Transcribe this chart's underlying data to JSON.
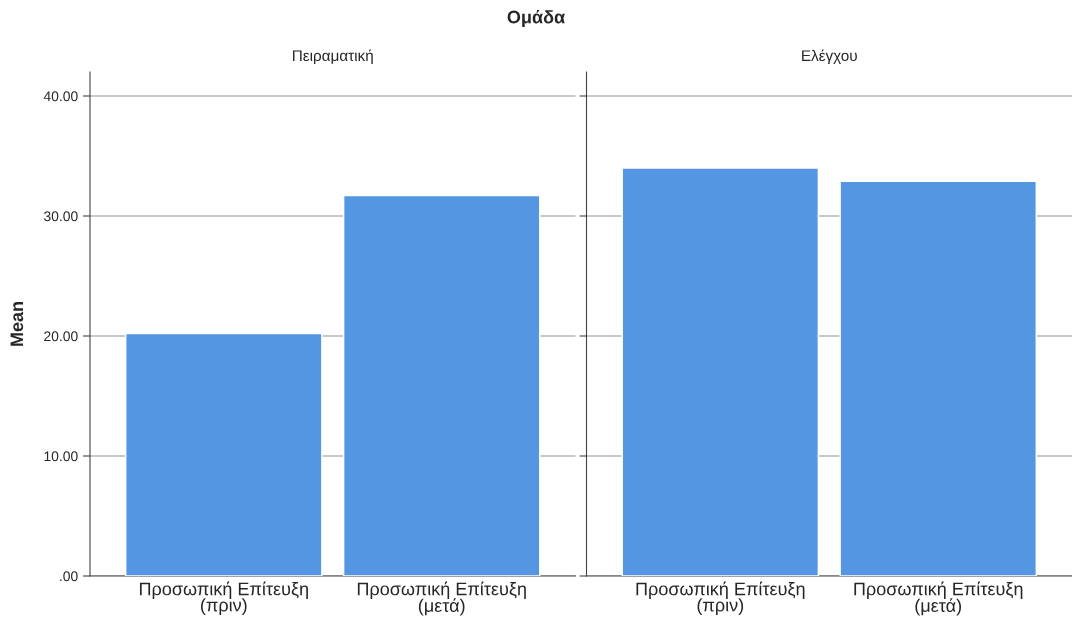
{
  "chart_data": [
    {
      "type": "bar",
      "title": "Ομάδα",
      "subtitle": "Πειραματική",
      "ylabel": "Mean",
      "categories": [
        "Προσωπική Επίτευξη\n(πριν)",
        "Προσωπική Επίτευξη\n(μετά)"
      ],
      "values": [
        20.2,
        31.7
      ],
      "color": "#5596e3",
      "ylim": [
        0,
        42
      ],
      "yticks": [
        {
          "value": 0,
          "label": ".00"
        },
        {
          "value": 10,
          "label": "10.00"
        },
        {
          "value": 20,
          "label": "20.00"
        },
        {
          "value": 30,
          "label": "30.00"
        },
        {
          "value": 40,
          "label": "40.00"
        }
      ],
      "grid": "y"
    },
    {
      "type": "bar",
      "subtitle": "Ελέγχου",
      "categories": [
        "Προσωπική Επίτευξη\n(πριν)",
        "Προσωπική Επίτευξη\n(μετά)"
      ],
      "values": [
        34.0,
        32.9
      ],
      "color": "#5596e3",
      "ylim": [
        0,
        42
      ],
      "yticks": [
        {
          "value": 0,
          "label": null
        },
        {
          "value": 10,
          "label": null
        },
        {
          "value": 20,
          "label": null
        },
        {
          "value": 30,
          "label": null
        },
        {
          "value": 40,
          "label": null
        }
      ],
      "grid": "y",
      "tick_labels": "x"
    }
  ]
}
